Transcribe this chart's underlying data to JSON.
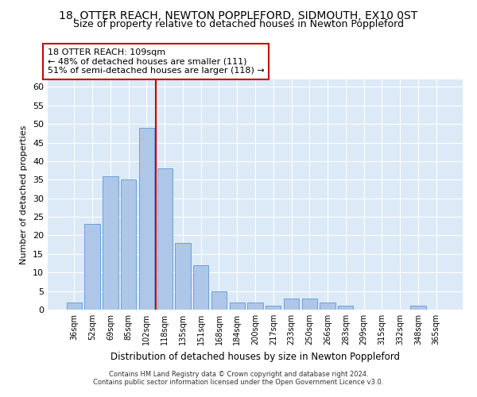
{
  "title1": "18, OTTER REACH, NEWTON POPPLEFORD, SIDMOUTH, EX10 0ST",
  "title2": "Size of property relative to detached houses in Newton Poppleford",
  "xlabel": "Distribution of detached houses by size in Newton Poppleford",
  "ylabel": "Number of detached properties",
  "categories": [
    "36sqm",
    "52sqm",
    "69sqm",
    "85sqm",
    "102sqm",
    "118sqm",
    "135sqm",
    "151sqm",
    "168sqm",
    "184sqm",
    "200sqm",
    "217sqm",
    "233sqm",
    "250sqm",
    "266sqm",
    "283sqm",
    "299sqm",
    "315sqm",
    "332sqm",
    "348sqm",
    "365sqm"
  ],
  "values": [
    2,
    23,
    36,
    35,
    49,
    38,
    18,
    12,
    5,
    2,
    2,
    1,
    3,
    3,
    2,
    1,
    0,
    0,
    0,
    1,
    0
  ],
  "bar_color": "#aec6e8",
  "bar_edge_color": "#5b9bd5",
  "vline_x": 4.5,
  "vline_color": "#cc0000",
  "annotation_text": "18 OTTER REACH: 109sqm\n← 48% of detached houses are smaller (111)\n51% of semi-detached houses are larger (118) →",
  "annotation_box_color": "#ffffff",
  "annotation_box_edge": "#cc0000",
  "ylim": [
    0,
    62
  ],
  "yticks": [
    0,
    5,
    10,
    15,
    20,
    25,
    30,
    35,
    40,
    45,
    50,
    55,
    60
  ],
  "footnote1": "Contains HM Land Registry data © Crown copyright and database right 2024.",
  "footnote2": "Contains public sector information licensed under the Open Government Licence v3.0.",
  "background_color": "#dce9f7",
  "fig_background": "#ffffff",
  "title1_fontsize": 10,
  "title2_fontsize": 9,
  "annot_fontsize": 8,
  "ylabel_fontsize": 8,
  "xlabel_fontsize": 8.5,
  "footnote_fontsize": 6,
  "ytick_fontsize": 8,
  "xtick_fontsize": 7
}
